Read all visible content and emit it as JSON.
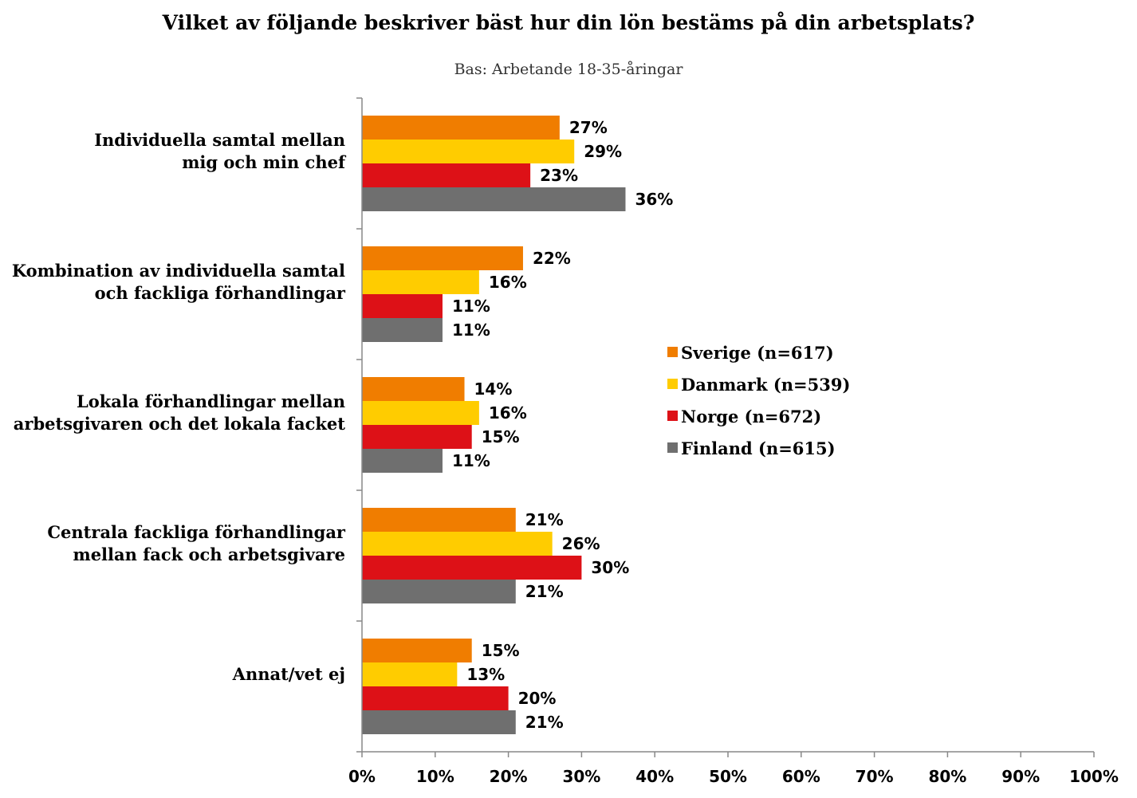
{
  "chart_data": {
    "type": "bar",
    "orientation": "horizontal",
    "title": "Vilket av följande beskriver bäst hur din lön bestäms på din arbetsplats?",
    "subtitle": "Bas: Arbetande 18-35-åringar",
    "categories": [
      [
        "Individuella samtal mellan",
        "mig och min chef"
      ],
      [
        "Kombination av individuella samtal",
        "och fackliga förhandlingar"
      ],
      [
        "Lokala förhandlingar mellan",
        "arbetsgivaren och det lokala facket"
      ],
      [
        "Centrala fackliga förhandlingar",
        "mellan fack och arbetsgivare"
      ],
      [
        "Annat/vet ej"
      ]
    ],
    "series": [
      {
        "name": "Sverige (n=617)",
        "color": "#f07d00",
        "values": [
          27,
          22,
          14,
          21,
          15
        ]
      },
      {
        "name": "Danmark (n=539)",
        "color": "#ffcc00",
        "values": [
          29,
          16,
          16,
          26,
          13
        ]
      },
      {
        "name": "Norge (n=672)",
        "color": "#dd1117",
        "values": [
          23,
          11,
          15,
          30,
          20
        ]
      },
      {
        "name": "Finland (n=615)",
        "color": "#6f6f6f",
        "values": [
          36,
          11,
          11,
          21,
          21
        ]
      }
    ],
    "xlim": [
      0,
      100
    ],
    "xticks": [
      "0%",
      "10%",
      "20%",
      "30%",
      "40%",
      "50%",
      "60%",
      "70%",
      "80%",
      "90%",
      "100%"
    ],
    "value_suffix": "%",
    "legend_position": "right"
  }
}
